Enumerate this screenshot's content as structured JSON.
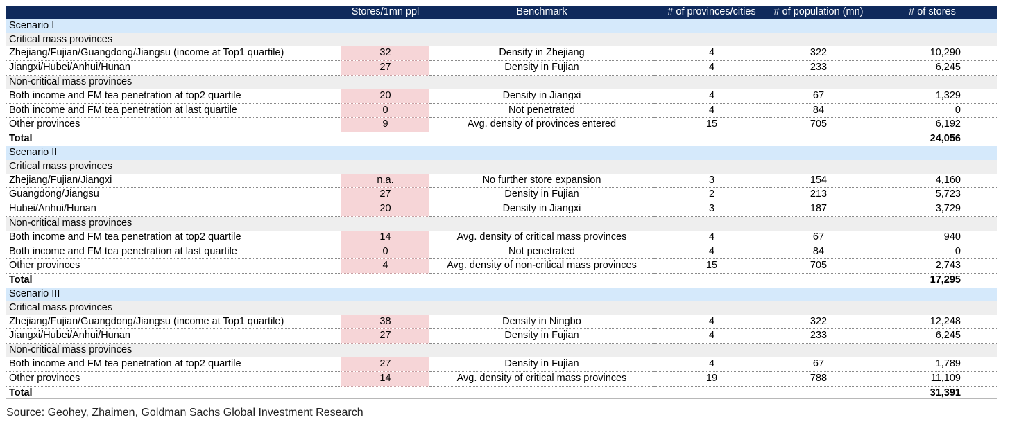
{
  "chart_data": {
    "type": "table",
    "columns": [
      "",
      "Stores/1mn ppl",
      "Benchmark",
      "# of provinces/cities",
      "# of population (mn)",
      "# of stores"
    ],
    "rows": [
      {
        "kind": "scenario",
        "label": "Scenario I"
      },
      {
        "kind": "group",
        "label": "Critical mass provinces"
      },
      {
        "kind": "data",
        "label": "Zhejiang/Fujian/Guangdong/Jiangsu (income at Top1 quartile)",
        "density": "32",
        "benchmark": "Density in Zhejiang",
        "provinces": "4",
        "population": "322",
        "stores": "10,290"
      },
      {
        "kind": "data",
        "label": "Jiangxi/Hubei/Anhui/Hunan",
        "density": "27",
        "benchmark": "Density in Fujian",
        "provinces": "4",
        "population": "233",
        "stores": "6,245"
      },
      {
        "kind": "group",
        "label": "Non-critical mass provinces"
      },
      {
        "kind": "data",
        "label": "Both income and FM tea penetration at top2 quartile",
        "density": "20",
        "benchmark": "Density in Jiangxi",
        "provinces": "4",
        "population": "67",
        "stores": "1,329"
      },
      {
        "kind": "data",
        "label": "Both income and FM tea penetration at last quartile",
        "density": "0",
        "benchmark": "Not penetrated",
        "provinces": "4",
        "population": "84",
        "stores": "0"
      },
      {
        "kind": "data",
        "label": "Other provinces",
        "density": "9",
        "benchmark": "Avg. density of provinces entered",
        "provinces": "15",
        "population": "705",
        "stores": "6,192"
      },
      {
        "kind": "total",
        "label": "Total",
        "stores": "24,056"
      },
      {
        "kind": "scenario",
        "label": "Scenario II"
      },
      {
        "kind": "group",
        "label": "Critical mass provinces"
      },
      {
        "kind": "data",
        "label": "Zhejiang/Fujian/Jiangxi",
        "density": "n.a.",
        "benchmark": "No further store expansion",
        "provinces": "3",
        "population": "154",
        "stores": "4,160"
      },
      {
        "kind": "data",
        "label": "Guangdong/Jiangsu",
        "density": "27",
        "benchmark": "Density in Fujian",
        "provinces": "2",
        "population": "213",
        "stores": "5,723"
      },
      {
        "kind": "data",
        "label": "Hubei/Anhui/Hunan",
        "density": "20",
        "benchmark": "Density in Jiangxi",
        "provinces": "3",
        "population": "187",
        "stores": "3,729"
      },
      {
        "kind": "group",
        "label": "Non-critical mass provinces"
      },
      {
        "kind": "data",
        "label": "Both income and FM tea penetration at top2 quartile",
        "density": "14",
        "benchmark": "Avg. density of critical mass provinces",
        "provinces": "4",
        "population": "67",
        "stores": "940"
      },
      {
        "kind": "data",
        "label": "Both income and FM tea penetration at last quartile",
        "density": "0",
        "benchmark": "Not penetrated",
        "provinces": "4",
        "population": "84",
        "stores": "0"
      },
      {
        "kind": "data",
        "label": "Other provinces",
        "density": "4",
        "benchmark": "Avg. density of non-critical mass provinces",
        "provinces": "15",
        "population": "705",
        "stores": "2,743"
      },
      {
        "kind": "total",
        "label": "Total",
        "stores": "17,295"
      },
      {
        "kind": "scenario",
        "label": "Scenario III"
      },
      {
        "kind": "group",
        "label": "Critical mass provinces"
      },
      {
        "kind": "data",
        "label": "Zhejiang/Fujian/Guangdong/Jiangsu (income at Top1 quartile)",
        "density": "38",
        "benchmark": "Density in Ningbo",
        "provinces": "4",
        "population": "322",
        "stores": "12,248"
      },
      {
        "kind": "data",
        "label": "Jiangxi/Hubei/Anhui/Hunan",
        "density": "27",
        "benchmark": "Density in Fujian",
        "provinces": "4",
        "population": "233",
        "stores": "6,245"
      },
      {
        "kind": "group",
        "label": "Non-critical mass provinces"
      },
      {
        "kind": "data",
        "label": "Both income and FM tea penetration at top2 quartile",
        "density": "27",
        "benchmark": "Density in Fujian",
        "provinces": "4",
        "population": "67",
        "stores": "1,789"
      },
      {
        "kind": "data",
        "label": "Other provinces",
        "density": "14",
        "benchmark": "Avg. density of critical mass provinces",
        "provinces": "19",
        "population": "788",
        "stores": "11,109"
      },
      {
        "kind": "total",
        "label": "Total",
        "stores": "31,391"
      }
    ],
    "colors": {
      "header": "#0f2a5c",
      "scenario": "#d5e9fb",
      "group": "#eeeeee",
      "highlight": "#f6d5d7"
    }
  },
  "source": "Source: Geohey, Zhaimen, Goldman Sachs Global Investment Research"
}
